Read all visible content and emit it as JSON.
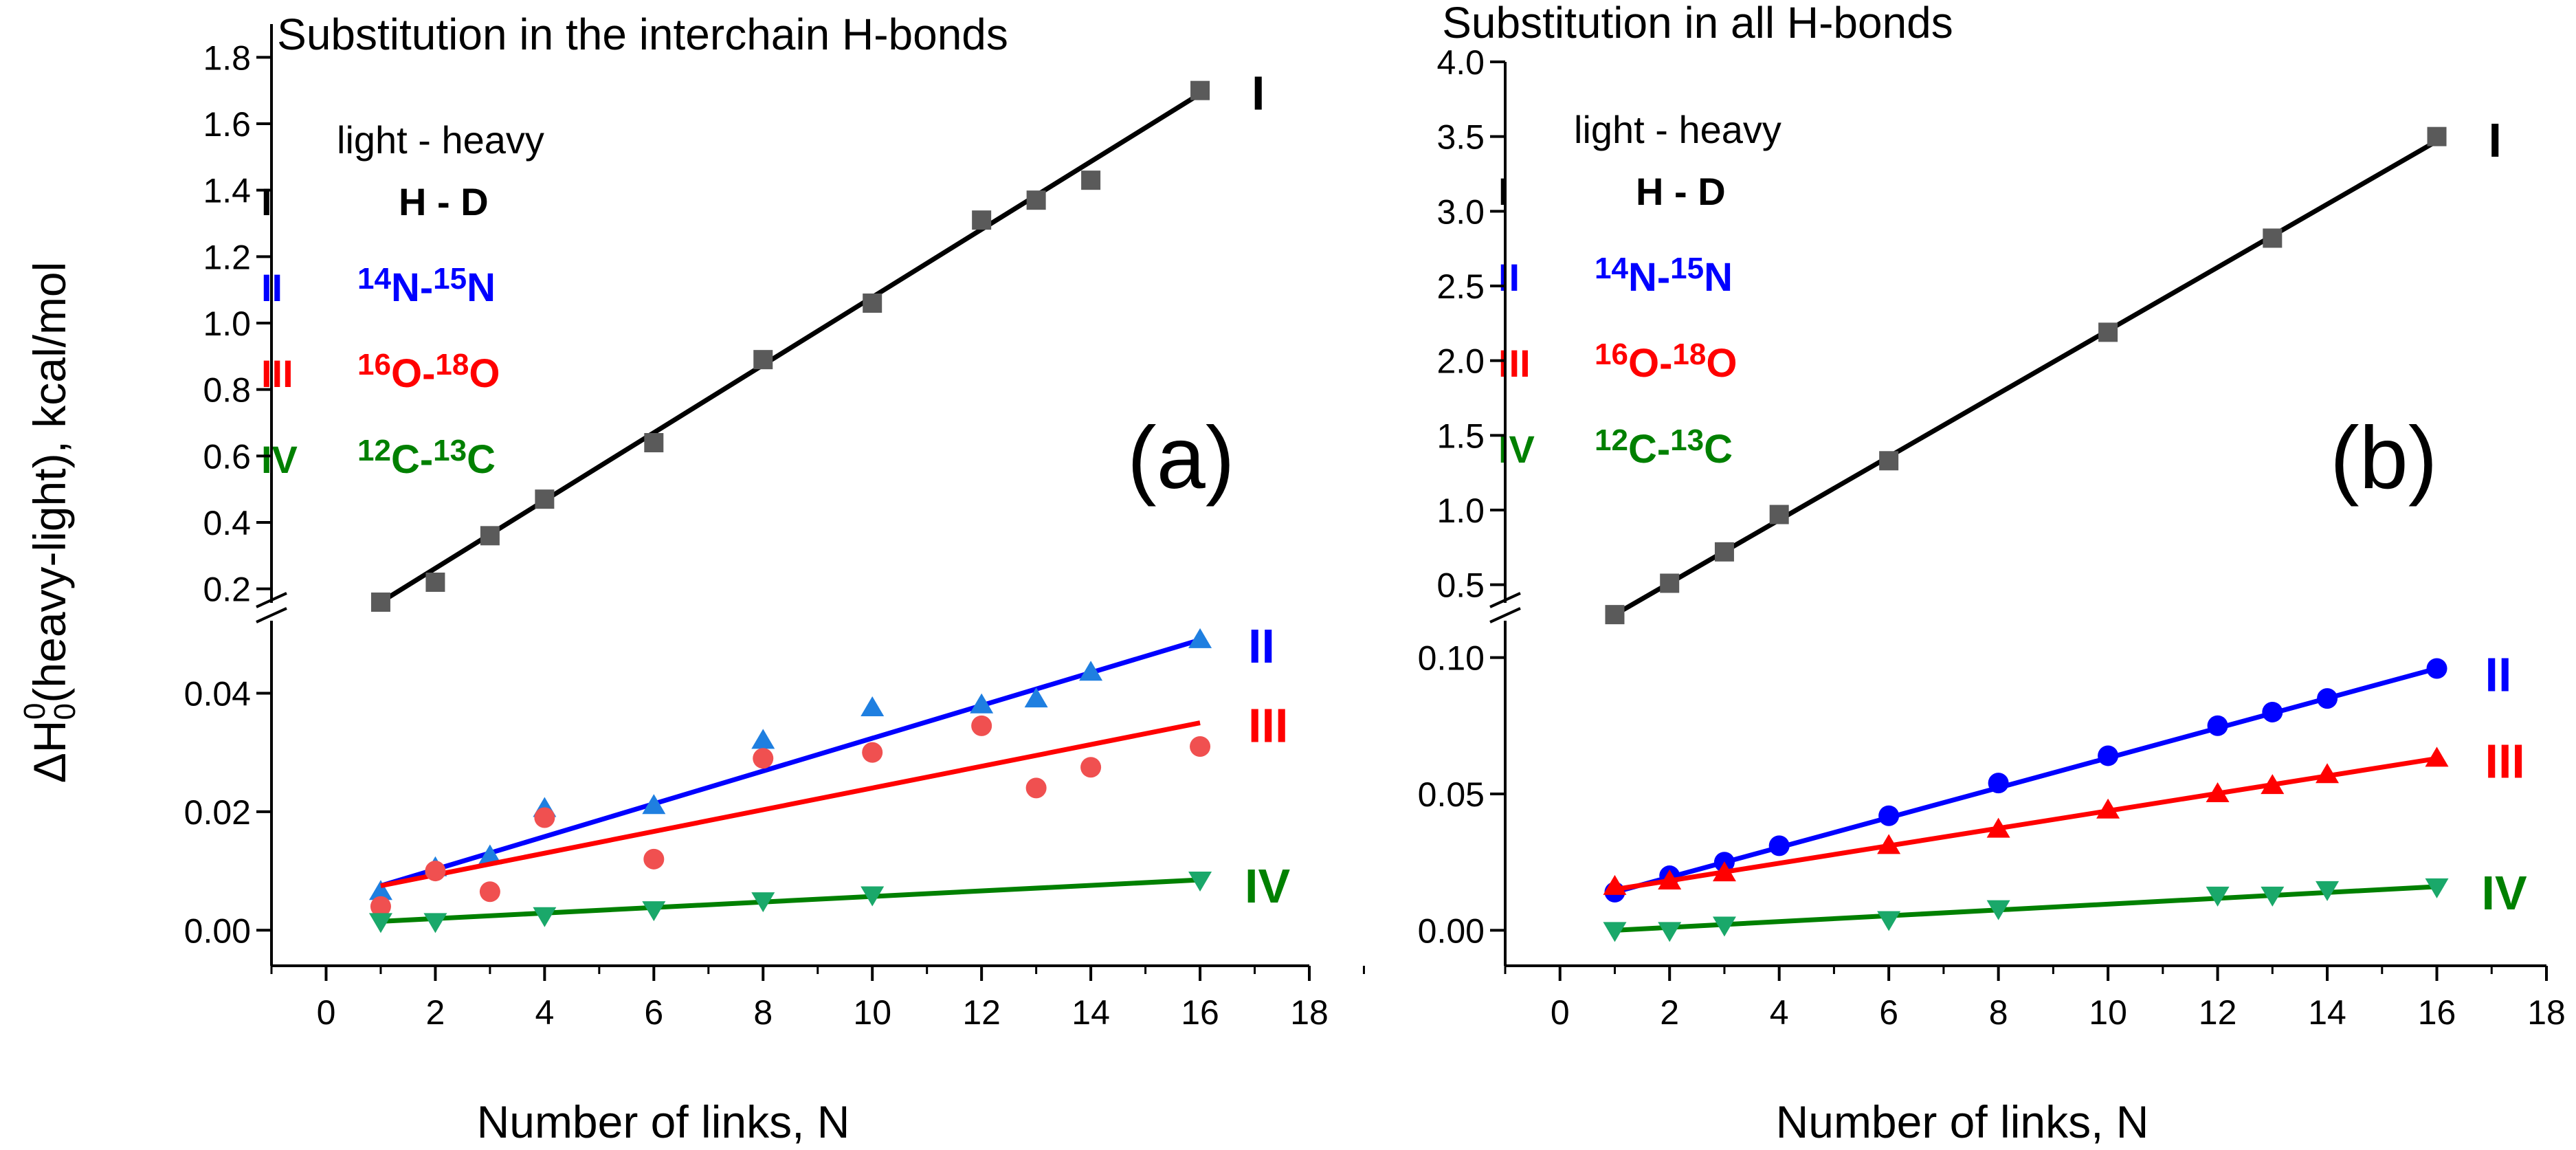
{
  "figure": {
    "xlabel": "Number of links, N",
    "ylabel": "ΔH₀⁰(heavy-light), kcal/mol"
  },
  "chart_data": [
    {
      "type": "scatter",
      "panel_label": "(a)",
      "title": "Substitution in the interchain H-bonds",
      "xlabel": "Number of links, N",
      "ylabel": "ΔH₀⁰(heavy-light), kcal/mol",
      "xlim": [
        -1,
        18
      ],
      "x_ticks": [
        "0",
        "2",
        "4",
        "6",
        "8",
        "10",
        "12",
        "14",
        "16",
        "18"
      ],
      "broken_y_axis": true,
      "upper_ylim": [
        0.1,
        1.9
      ],
      "upper_y_ticks": [
        "0.2",
        "0.4",
        "0.6",
        "0.8",
        "1.0",
        "1.2",
        "1.4",
        "1.6",
        "1.8"
      ],
      "lower_ylim": [
        -0.006,
        0.052
      ],
      "lower_y_ticks": [
        "0.00",
        "0.02",
        "0.04"
      ],
      "legend": {
        "heading": "light - heavy",
        "entries": [
          {
            "roman": "I",
            "pair": "H - D",
            "color": "#000000"
          },
          {
            "roman": "II",
            "iso1": "14",
            "el1": "N",
            "sep": "-",
            "iso2": "15",
            "el2": "N",
            "color": "#0000ff"
          },
          {
            "roman": "III",
            "iso1": "16",
            "el1": "O",
            "sep": "-",
            "iso2": "18",
            "el2": "O",
            "color": "#ff0000"
          },
          {
            "roman": "IV",
            "iso1": "12",
            "el1": "C",
            "sep": "-",
            "iso2": "13",
            "el2": "C",
            "color": "#008000"
          }
        ]
      },
      "series": [
        {
          "name": "I",
          "label": "I",
          "segment": "upper",
          "marker": "square",
          "color": "#5a5a5a",
          "line_color": "#000000",
          "x": [
            1,
            2,
            3,
            4,
            6,
            8,
            10,
            12,
            13,
            14,
            16
          ],
          "y": [
            0.16,
            0.22,
            0.36,
            0.47,
            0.64,
            0.89,
            1.06,
            1.31,
            1.37,
            1.43,
            1.7
          ],
          "fit": [
            [
              1,
              0.16
            ],
            [
              16,
              1.69
            ]
          ]
        },
        {
          "name": "II",
          "label": "II",
          "segment": "lower",
          "marker": "triangle-up",
          "color": "#1f7fe0",
          "line_color": "#0000ff",
          "x": [
            1,
            2,
            3,
            4,
            6,
            8,
            10,
            12,
            13,
            14,
            16
          ],
          "y": [
            0.0065,
            0.0105,
            0.0125,
            0.0205,
            0.021,
            0.032,
            0.0375,
            0.038,
            0.039,
            0.0435,
            0.049
          ],
          "fit": [
            [
              1,
              0.0075
            ],
            [
              16,
              0.049
            ]
          ]
        },
        {
          "name": "III",
          "label": "III",
          "segment": "lower",
          "marker": "circle",
          "color": "#f05050",
          "line_color": "#ff0000",
          "x": [
            1,
            2,
            3,
            4,
            6,
            8,
            10,
            12,
            13,
            14,
            16
          ],
          "y": [
            0.004,
            0.01,
            0.0065,
            0.019,
            0.012,
            0.029,
            0.03,
            0.0345,
            0.024,
            0.0275,
            0.031
          ],
          "fit": [
            [
              1,
              0.0075
            ],
            [
              16,
              0.035
            ]
          ]
        },
        {
          "name": "IV",
          "label": "IV",
          "segment": "lower",
          "marker": "triangle-down",
          "color": "#1aa86a",
          "line_color": "#008000",
          "x": [
            1,
            2,
            4,
            6,
            8,
            10,
            16
          ],
          "y": [
            0.0015,
            0.0015,
            0.0025,
            0.0035,
            0.005,
            0.006,
            0.0085
          ],
          "fit": [
            [
              1,
              0.0015
            ],
            [
              16,
              0.0085
            ]
          ]
        }
      ]
    },
    {
      "type": "scatter",
      "panel_label": "(b)",
      "title": "Substitution in all H-bonds",
      "xlabel": "Number of links, N",
      "ylabel": "",
      "xlim": [
        -1,
        18
      ],
      "x_ticks": [
        "0",
        "2",
        "4",
        "6",
        "8",
        "10",
        "12",
        "14",
        "16",
        "18"
      ],
      "broken_y_axis": true,
      "upper_ylim": [
        0.25,
        4.0
      ],
      "upper_y_ticks": [
        "0.5",
        "1.0",
        "1.5",
        "2.0",
        "2.5",
        "3.0",
        "3.5",
        "4.0"
      ],
      "lower_ylim": [
        -0.013,
        0.113
      ],
      "lower_y_ticks": [
        "0.00",
        "0.05",
        "0.10"
      ],
      "legend": {
        "heading": "light - heavy",
        "entries": [
          {
            "roman": "I",
            "pair": "H - D",
            "color": "#000000"
          },
          {
            "roman": "II",
            "iso1": "14",
            "el1": "N",
            "sep": "-",
            "iso2": "15",
            "el2": "N",
            "color": "#0000ff"
          },
          {
            "roman": "III",
            "iso1": "16",
            "el1": "O",
            "sep": "-",
            "iso2": "18",
            "el2": "O",
            "color": "#ff0000"
          },
          {
            "roman": "IV",
            "iso1": "12",
            "el1": "C",
            "sep": "-",
            "iso2": "13",
            "el2": "C",
            "color": "#008000"
          }
        ]
      },
      "series": [
        {
          "name": "I",
          "label": "I",
          "segment": "upper",
          "marker": "square",
          "color": "#5a5a5a",
          "line_color": "#000000",
          "x": [
            1,
            2,
            3,
            4,
            6,
            10,
            13,
            16
          ],
          "y": [
            0.3,
            0.51,
            0.72,
            0.97,
            1.33,
            2.19,
            2.82,
            3.5
          ],
          "fit": [
            [
              1,
              0.3
            ],
            [
              16,
              3.47
            ]
          ]
        },
        {
          "name": "II",
          "label": "II",
          "segment": "lower",
          "marker": "circle",
          "color": "#0000ff",
          "line_color": "#0000ff",
          "x": [
            1,
            2,
            3,
            4,
            6,
            8,
            10,
            12,
            13,
            14,
            16
          ],
          "y": [
            0.014,
            0.02,
            0.025,
            0.031,
            0.042,
            0.054,
            0.064,
            0.075,
            0.08,
            0.085,
            0.096
          ],
          "fit": [
            [
              1,
              0.014
            ],
            [
              16,
              0.096
            ]
          ]
        },
        {
          "name": "III",
          "label": "III",
          "segment": "lower",
          "marker": "triangle-up",
          "color": "#ff0000",
          "line_color": "#ff0000",
          "x": [
            1,
            2,
            3,
            6,
            8,
            10,
            12,
            13,
            14,
            16
          ],
          "y": [
            0.016,
            0.018,
            0.021,
            0.031,
            0.037,
            0.044,
            0.05,
            0.053,
            0.057,
            0.063
          ],
          "fit": [
            [
              1,
              0.015
            ],
            [
              16,
              0.063
            ]
          ]
        },
        {
          "name": "IV",
          "label": "IV",
          "segment": "lower",
          "marker": "triangle-down",
          "color": "#1aa86a",
          "line_color": "#008000",
          "x": [
            1,
            2,
            3,
            6,
            8,
            12,
            13,
            14,
            16
          ],
          "y": [
            0.0,
            0.0,
            0.002,
            0.004,
            0.008,
            0.013,
            0.013,
            0.015,
            0.016
          ],
          "fit": [
            [
              1,
              0.0
            ],
            [
              16,
              0.016
            ]
          ]
        }
      ]
    }
  ]
}
